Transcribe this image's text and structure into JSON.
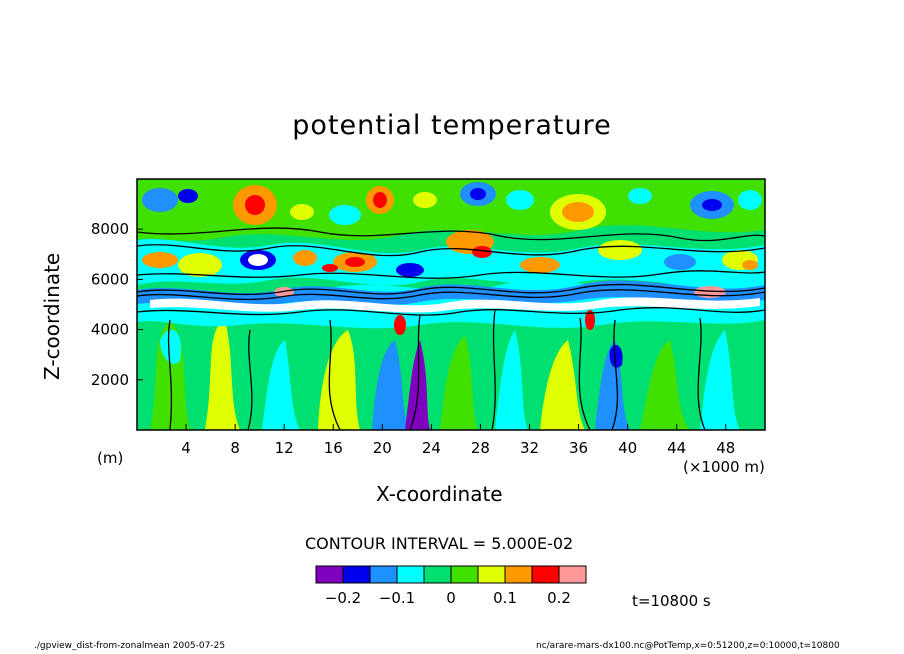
{
  "chart_data": {
    "type": "heatmap",
    "title": "potential temperature",
    "xlabel": "X-coordinate",
    "ylabel": "Z-coordinate",
    "x_unit_label": "(×1000 m)",
    "y_unit_label": "(m)",
    "xlim": [
      0,
      51.2
    ],
    "ylim": [
      0,
      10000
    ],
    "x_ticks": [
      4,
      8,
      12,
      16,
      20,
      24,
      28,
      32,
      36,
      40,
      44,
      48
    ],
    "y_ticks": [
      2000,
      4000,
      6000,
      8000
    ],
    "contour_interval_text": "CONTOUR INTERVAL = 5.000E-02",
    "colorbar": {
      "colors": [
        "#8000c0",
        "#0000ee",
        "#1e90ff",
        "#00ffff",
        "#00e070",
        "#40e000",
        "#e0ff00",
        "#ff9900",
        "#ff0000",
        "#ff9999"
      ],
      "tick_labels": [
        "-0.2",
        "-0.1",
        "0",
        "0.1",
        "0.2"
      ]
    },
    "time_text": "t=10800 s",
    "footer_left": "./gpview_dist-from-zonalmean  2005-07-25",
    "footer_right": "nc/arare-mars-dx100.nc@PotTemp,x=0:51200,z=0:10000,t=10800"
  }
}
